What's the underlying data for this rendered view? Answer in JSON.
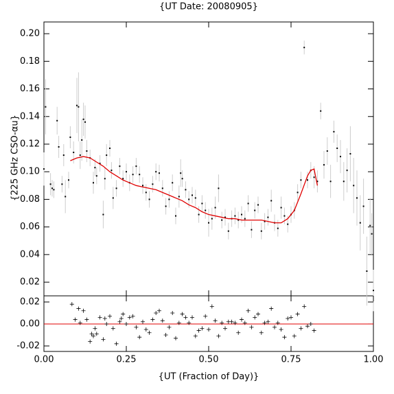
{
  "chart_data": [
    {
      "type": "scatter",
      "title": "{UT Date: 20080905}",
      "ylabel": "{225 GHz CSO-αu}",
      "color": "#000000",
      "error_color": "#cccccc",
      "x": [
        0.0,
        0.005,
        0.02,
        0.025,
        0.03,
        0.04,
        0.045,
        0.055,
        0.06,
        0.065,
        0.075,
        0.08,
        0.09,
        0.1,
        0.105,
        0.11,
        0.115,
        0.12,
        0.125,
        0.13,
        0.14,
        0.15,
        0.155,
        0.16,
        0.17,
        0.18,
        0.185,
        0.19,
        0.2,
        0.205,
        0.21,
        0.22,
        0.23,
        0.24,
        0.25,
        0.26,
        0.27,
        0.28,
        0.29,
        0.3,
        0.31,
        0.32,
        0.33,
        0.34,
        0.35,
        0.36,
        0.37,
        0.38,
        0.39,
        0.4,
        0.41,
        0.415,
        0.42,
        0.43,
        0.44,
        0.45,
        0.46,
        0.47,
        0.48,
        0.49,
        0.5,
        0.51,
        0.52,
        0.53,
        0.54,
        0.55,
        0.56,
        0.57,
        0.58,
        0.59,
        0.6,
        0.61,
        0.62,
        0.63,
        0.64,
        0.65,
        0.66,
        0.67,
        0.68,
        0.69,
        0.7,
        0.71,
        0.72,
        0.73,
        0.74,
        0.75,
        0.76,
        0.77,
        0.78,
        0.79,
        0.8,
        0.81,
        0.82,
        0.83,
        0.84,
        0.85,
        0.86,
        0.87,
        0.88,
        0.89,
        0.9,
        0.91,
        0.92,
        0.93,
        0.94,
        0.95,
        0.96,
        0.97,
        0.98,
        0.99,
        0.995,
        1.0
      ],
      "values": [
        0.102,
        0.147,
        0.091,
        0.088,
        0.087,
        0.137,
        0.118,
        0.091,
        0.112,
        0.082,
        0.094,
        0.125,
        0.114,
        0.148,
        0.147,
        0.112,
        0.123,
        0.138,
        0.136,
        0.115,
        0.11,
        0.092,
        0.103,
        0.097,
        0.106,
        0.069,
        0.095,
        0.112,
        0.117,
        0.101,
        0.081,
        0.088,
        0.104,
        0.095,
        0.1,
        0.092,
        0.098,
        0.104,
        0.098,
        0.09,
        0.085,
        0.08,
        0.091,
        0.1,
        0.099,
        0.088,
        0.075,
        0.08,
        0.092,
        0.068,
        0.082,
        0.099,
        0.095,
        0.087,
        0.08,
        0.083,
        0.081,
        0.069,
        0.077,
        0.072,
        0.063,
        0.066,
        0.074,
        0.088,
        0.065,
        0.067,
        0.057,
        0.066,
        0.068,
        0.065,
        0.069,
        0.066,
        0.077,
        0.058,
        0.072,
        0.076,
        0.057,
        0.064,
        0.067,
        0.079,
        0.063,
        0.059,
        0.074,
        0.068,
        0.062,
        0.069,
        0.072,
        0.085,
        0.094,
        0.19,
        0.094,
        0.101,
        0.096,
        0.093,
        0.144,
        0.105,
        0.115,
        0.093,
        0.129,
        0.117,
        0.111,
        0.093,
        0.101,
        0.113,
        0.09,
        0.081,
        0.063,
        0.075,
        0.028,
        0.061,
        0.055,
        0.014
      ],
      "errors": [
        0.012,
        0.02,
        0.008,
        0.006,
        0.006,
        0.01,
        0.008,
        0.006,
        0.008,
        0.012,
        0.006,
        0.008,
        0.008,
        0.02,
        0.025,
        0.01,
        0.015,
        0.012,
        0.012,
        0.008,
        0.006,
        0.008,
        0.006,
        0.006,
        0.006,
        0.01,
        0.008,
        0.008,
        0.006,
        0.006,
        0.008,
        0.006,
        0.006,
        0.006,
        0.006,
        0.006,
        0.006,
        0.006,
        0.006,
        0.006,
        0.006,
        0.006,
        0.006,
        0.006,
        0.006,
        0.006,
        0.006,
        0.006,
        0.006,
        0.006,
        0.008,
        0.01,
        0.006,
        0.006,
        0.006,
        0.006,
        0.006,
        0.006,
        0.006,
        0.006,
        0.01,
        0.008,
        0.008,
        0.01,
        0.006,
        0.006,
        0.006,
        0.006,
        0.006,
        0.006,
        0.006,
        0.006,
        0.006,
        0.006,
        0.006,
        0.006,
        0.006,
        0.006,
        0.006,
        0.008,
        0.006,
        0.006,
        0.008,
        0.006,
        0.006,
        0.006,
        0.006,
        0.006,
        0.006,
        0.005,
        0.006,
        0.006,
        0.008,
        0.008,
        0.006,
        0.01,
        0.01,
        0.012,
        0.008,
        0.01,
        0.012,
        0.014,
        0.016,
        0.02,
        0.02,
        0.02,
        0.02,
        0.02,
        0.025,
        0.02,
        0.015,
        0.015
      ],
      "fit": {
        "color": "#e00000",
        "x": [
          0.08,
          0.1,
          0.12,
          0.14,
          0.16,
          0.18,
          0.2,
          0.22,
          0.24,
          0.26,
          0.28,
          0.3,
          0.32,
          0.34,
          0.36,
          0.38,
          0.4,
          0.42,
          0.44,
          0.46,
          0.48,
          0.5,
          0.52,
          0.54,
          0.56,
          0.58,
          0.6,
          0.62,
          0.64,
          0.66,
          0.68,
          0.7,
          0.72,
          0.74,
          0.76,
          0.78,
          0.8,
          0.81,
          0.82,
          0.83
        ],
        "values": [
          0.108,
          0.11,
          0.111,
          0.11,
          0.107,
          0.104,
          0.1,
          0.097,
          0.094,
          0.092,
          0.09,
          0.089,
          0.088,
          0.087,
          0.085,
          0.083,
          0.081,
          0.079,
          0.076,
          0.074,
          0.071,
          0.069,
          0.068,
          0.067,
          0.066,
          0.066,
          0.065,
          0.065,
          0.065,
          0.065,
          0.064,
          0.063,
          0.063,
          0.066,
          0.072,
          0.084,
          0.097,
          0.101,
          0.102,
          0.09
        ]
      },
      "xlim": [
        0,
        1
      ],
      "xticks": [
        0,
        0.25,
        0.5,
        0.75,
        1
      ],
      "ylim": [
        0.0101,
        0.2085
      ],
      "yticks": [
        0.02,
        0.04,
        0.06,
        0.08,
        {
          "value": 0.1,
          "label": "0.10"
        },
        0.12,
        0.14,
        0.16,
        0.18,
        {
          "value": 0.2,
          "label": "0.20"
        }
      ]
    },
    {
      "type": "residual",
      "xlabel": "{UT (Fraction of Day)}",
      "color": "#000000",
      "zero_color": "#e00000",
      "x": [
        0.085,
        0.095,
        0.105,
        0.11,
        0.12,
        0.13,
        0.14,
        0.145,
        0.15,
        0.155,
        0.16,
        0.17,
        0.18,
        0.185,
        0.19,
        0.2,
        0.21,
        0.22,
        0.23,
        0.235,
        0.24,
        0.25,
        0.26,
        0.27,
        0.28,
        0.29,
        0.3,
        0.31,
        0.32,
        0.33,
        0.34,
        0.35,
        0.36,
        0.37,
        0.38,
        0.39,
        0.4,
        0.41,
        0.42,
        0.43,
        0.44,
        0.45,
        0.46,
        0.47,
        0.48,
        0.49,
        0.5,
        0.51,
        0.52,
        0.53,
        0.54,
        0.55,
        0.56,
        0.57,
        0.58,
        0.59,
        0.6,
        0.61,
        0.62,
        0.63,
        0.64,
        0.65,
        0.66,
        0.67,
        0.68,
        0.69,
        0.7,
        0.71,
        0.72,
        0.73,
        0.74,
        0.75,
        0.76,
        0.77,
        0.78,
        0.79,
        0.8,
        0.81,
        0.82
      ],
      "values": [
        0.018,
        0.004,
        0.014,
        0.001,
        0.012,
        0.004,
        -0.016,
        -0.009,
        -0.011,
        -0.004,
        -0.009,
        0.006,
        -0.014,
        0.005,
        0.0,
        0.007,
        -0.004,
        -0.018,
        0.002,
        0.005,
        0.009,
        0.0,
        0.006,
        0.007,
        -0.003,
        -0.012,
        0.002,
        -0.005,
        -0.008,
        0.004,
        0.01,
        0.012,
        0.003,
        -0.01,
        -0.003,
        0.01,
        -0.013,
        0.001,
        0.009,
        0.006,
        0.001,
        0.006,
        -0.011,
        -0.006,
        -0.004,
        0.007,
        -0.005,
        0.016,
        0.003,
        -0.011,
        0.001,
        -0.004,
        0.002,
        0.002,
        0.001,
        -0.008,
        0.004,
        0.001,
        0.012,
        -0.003,
        0.006,
        0.009,
        -0.008,
        0.001,
        0.002,
        0.014,
        -0.003,
        0.001,
        -0.005,
        -0.012,
        0.005,
        0.006,
        -0.011,
        0.009,
        -0.004,
        0.016,
        -0.002,
        0.0,
        -0.006
      ],
      "xlim": [
        0,
        1
      ],
      "xticks": [
        {
          "value": 0,
          "label": "0.00"
        },
        {
          "value": 0.25,
          "label": "0.25"
        },
        {
          "value": 0.5,
          "label": "0.50"
        },
        {
          "value": 0.75,
          "label": "0.75"
        },
        {
          "value": 1,
          "label": "1.00"
        }
      ],
      "ylim": [
        -0.025,
        0.0256
      ],
      "yticks": [
        -0.02,
        {
          "value": 0,
          "label": "0.00"
        },
        0.02
      ]
    }
  ]
}
